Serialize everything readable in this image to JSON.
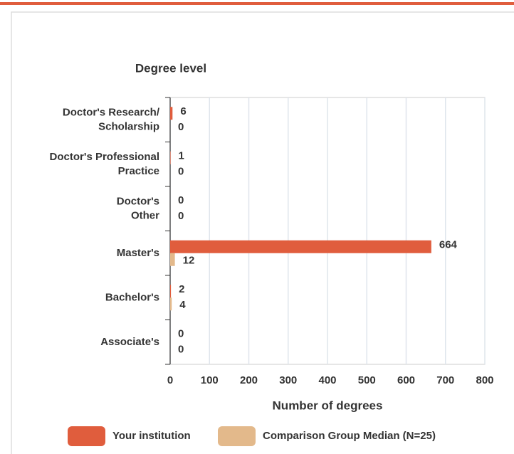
{
  "chart_data": {
    "type": "bar",
    "orientation": "horizontal",
    "title": "Degree level",
    "x_label": "Number of degrees",
    "categories": [
      "Doctor's Research/\nScholarship",
      "Doctor's Professional\nPractice",
      "Doctor's\nOther",
      "Master's",
      "Bachelor's",
      "Associate's"
    ],
    "series": [
      {
        "name": "Your institution",
        "color": "#e05d3d",
        "values": [
          6,
          1,
          0,
          664,
          2,
          0
        ]
      },
      {
        "name": "Comparison Group Median (N=25)",
        "color": "#e3b98b",
        "values": [
          0,
          0,
          0,
          12,
          4,
          0
        ]
      }
    ],
    "xlim": [
      0,
      800
    ],
    "xticks": [
      0,
      100,
      200,
      300,
      400,
      500,
      600,
      700,
      800
    ],
    "grid": true
  }
}
